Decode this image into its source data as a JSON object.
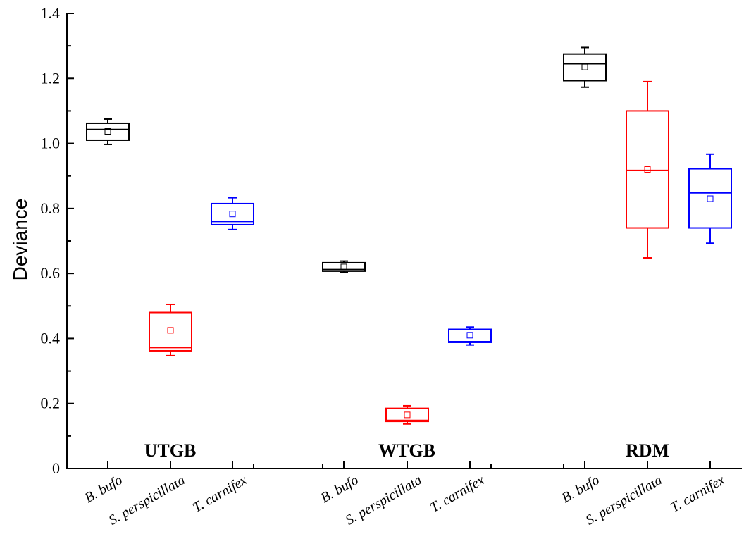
{
  "chart_data": {
    "type": "box",
    "ylabel": "Deviance",
    "ylim": [
      0,
      1.4
    ],
    "yticks": [
      "0",
      "0.2",
      "0.4",
      "0.6",
      "0.8",
      "1.0",
      "1.2",
      "1.4"
    ],
    "y_tick_values": [
      0,
      0.2,
      0.4,
      0.6,
      0.8,
      1.0,
      1.2,
      1.4
    ],
    "grid": false,
    "groups": [
      {
        "label": "UTGB",
        "boxes": [
          {
            "category": "B. bufo",
            "color": "#000000",
            "whisker_low": 0.997,
            "q1": 1.01,
            "median": 1.043,
            "q3": 1.062,
            "whisker_high": 1.075,
            "mean": 1.037
          },
          {
            "category": "S. perspicillata",
            "color": "#ff0000",
            "whisker_low": 0.347,
            "q1": 0.362,
            "median": 0.372,
            "q3": 0.48,
            "whisker_high": 0.505,
            "mean": 0.425
          },
          {
            "category": "T. carnifex",
            "color": "#0000ff",
            "whisker_low": 0.735,
            "q1": 0.75,
            "median": 0.76,
            "q3": 0.815,
            "whisker_high": 0.833,
            "mean": 0.783
          }
        ]
      },
      {
        "label": "WTGB",
        "boxes": [
          {
            "category": "B. bufo",
            "color": "#000000",
            "whisker_low": 0.603,
            "q1": 0.607,
            "median": 0.612,
            "q3": 0.633,
            "whisker_high": 0.638,
            "mean": 0.62
          },
          {
            "category": "S. perspicillata",
            "color": "#ff0000",
            "whisker_low": 0.137,
            "q1": 0.145,
            "median": 0.148,
            "q3": 0.185,
            "whisker_high": 0.193,
            "mean": 0.165
          },
          {
            "category": "T. carnifex",
            "color": "#0000ff",
            "whisker_low": 0.38,
            "q1": 0.388,
            "median": 0.39,
            "q3": 0.428,
            "whisker_high": 0.435,
            "mean": 0.41
          }
        ]
      },
      {
        "label": "RDM",
        "boxes": [
          {
            "category": "B. bufo",
            "color": "#000000",
            "whisker_low": 1.173,
            "q1": 1.193,
            "median": 1.245,
            "q3": 1.275,
            "whisker_high": 1.295,
            "mean": 1.235
          },
          {
            "category": "S. perspicillata",
            "color": "#ff0000",
            "whisker_low": 0.648,
            "q1": 0.74,
            "median": 0.917,
            "q3": 1.1,
            "whisker_high": 1.19,
            "mean": 0.92
          },
          {
            "category": "T. carnifex",
            "color": "#0000ff",
            "whisker_low": 0.693,
            "q1": 0.74,
            "median": 0.848,
            "q3": 0.922,
            "whisker_high": 0.967,
            "mean": 0.83
          }
        ]
      }
    ]
  }
}
